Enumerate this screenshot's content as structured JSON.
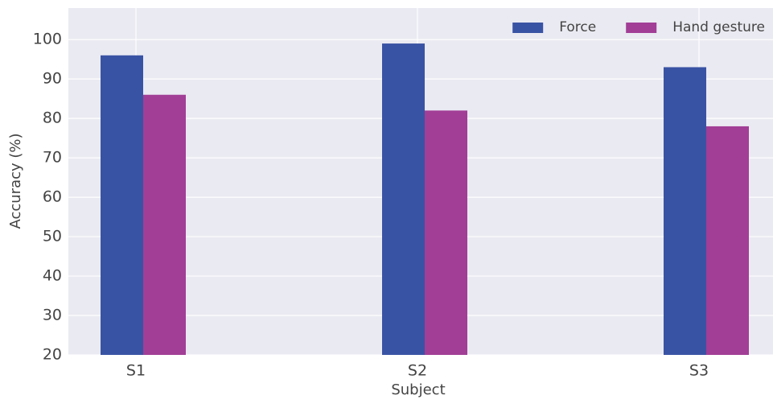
{
  "chart_data": {
    "type": "bar",
    "x_label": "Subject",
    "y_label": "Accuracy (%)",
    "categories": [
      "S1",
      "S2",
      "S3"
    ],
    "series": [
      {
        "name": "Force",
        "color": "#3953a4",
        "values": [
          96,
          99,
          93
        ]
      },
      {
        "name": "Hand gesture",
        "color": "#a23e96",
        "values": [
          86,
          82,
          78
        ]
      }
    ],
    "ylim": [
      20,
      108
    ],
    "yticks": [
      20,
      30,
      40,
      50,
      60,
      70,
      80,
      90,
      100
    ],
    "grid": true,
    "legend": "upper right"
  }
}
